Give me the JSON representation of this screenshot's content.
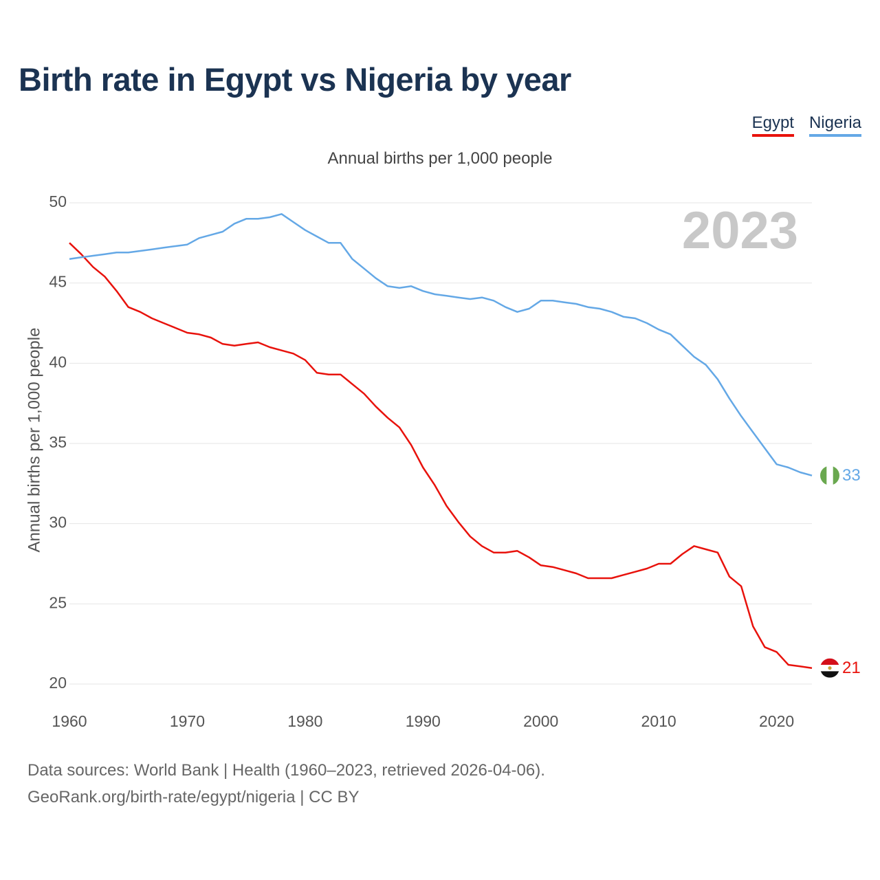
{
  "title": "Birth rate in Egypt vs Nigeria by year",
  "subtitle": "Annual births per 1,000 people",
  "legend": [
    {
      "label": "Egypt",
      "color": "#e8120c"
    },
    {
      "label": "Nigeria",
      "color": "#64a8e6"
    }
  ],
  "footer": {
    "line1": "Data sources: World Bank | Health (1960–2023, retrieved 2026-04-06).",
    "line2": "GeoRank.org/birth-rate/egypt/nigeria | CC BY"
  },
  "chart_data": {
    "type": "line",
    "title": "Birth rate in Egypt vs Nigeria by year",
    "xlabel": "",
    "ylabel": "Annual births per 1,000 people",
    "year_label": "2023",
    "xlim": [
      1960,
      2023
    ],
    "ylim": [
      20,
      50
    ],
    "x_ticks": [
      1960,
      1970,
      1980,
      1990,
      2000,
      2010,
      2020
    ],
    "y_ticks": [
      20,
      25,
      30,
      35,
      40,
      45,
      50
    ],
    "grid": true,
    "legend_position": "top-right",
    "x": [
      1960,
      1961,
      1962,
      1963,
      1964,
      1965,
      1966,
      1967,
      1968,
      1969,
      1970,
      1971,
      1972,
      1973,
      1974,
      1975,
      1976,
      1977,
      1978,
      1979,
      1980,
      1981,
      1982,
      1983,
      1984,
      1985,
      1986,
      1987,
      1988,
      1989,
      1990,
      1991,
      1992,
      1993,
      1994,
      1995,
      1996,
      1997,
      1998,
      1999,
      2000,
      2001,
      2002,
      2003,
      2004,
      2005,
      2006,
      2007,
      2008,
      2009,
      2010,
      2011,
      2012,
      2013,
      2014,
      2015,
      2016,
      2017,
      2018,
      2019,
      2020,
      2021,
      2022,
      2023
    ],
    "series": [
      {
        "name": "Egypt",
        "color": "#e8120c",
        "end_label": "21",
        "values": [
          47.5,
          46.8,
          46.0,
          45.4,
          44.5,
          43.5,
          43.2,
          42.8,
          42.5,
          42.2,
          41.9,
          41.8,
          41.6,
          41.2,
          41.1,
          41.2,
          41.3,
          41.0,
          40.8,
          40.6,
          40.2,
          39.4,
          39.3,
          39.3,
          38.7,
          38.1,
          37.3,
          36.6,
          36.0,
          34.9,
          33.5,
          32.4,
          31.1,
          30.1,
          29.2,
          28.6,
          28.2,
          28.2,
          28.3,
          27.9,
          27.4,
          27.3,
          27.1,
          26.9,
          26.6,
          26.6,
          26.6,
          26.8,
          27.0,
          27.2,
          27.5,
          27.5,
          28.1,
          28.6,
          28.4,
          28.2,
          26.7,
          26.1,
          23.6,
          22.3,
          22.0,
          21.2,
          21.1,
          21.0
        ]
      },
      {
        "name": "Nigeria",
        "color": "#64a8e6",
        "end_label": "33",
        "values": [
          46.5,
          46.6,
          46.7,
          46.8,
          46.9,
          46.9,
          47.0,
          47.1,
          47.2,
          47.3,
          47.4,
          47.8,
          48.0,
          48.2,
          48.7,
          49.0,
          49.0,
          49.1,
          49.3,
          48.8,
          48.3,
          47.9,
          47.5,
          47.5,
          46.5,
          45.9,
          45.3,
          44.8,
          44.7,
          44.8,
          44.5,
          44.3,
          44.2,
          44.1,
          44.0,
          44.1,
          43.9,
          43.5,
          43.2,
          43.4,
          43.9,
          43.9,
          43.8,
          43.7,
          43.5,
          43.4,
          43.2,
          42.9,
          42.8,
          42.5,
          42.1,
          41.8,
          41.1,
          40.4,
          39.9,
          39.0,
          37.8,
          36.7,
          35.7,
          34.7,
          33.7,
          33.5,
          33.2,
          33.0
        ]
      }
    ]
  }
}
